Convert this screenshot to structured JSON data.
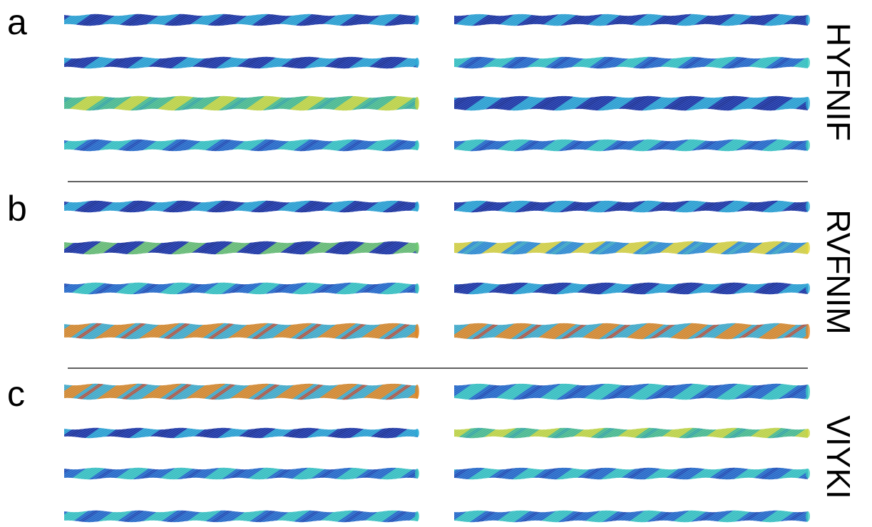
{
  "panels": [
    {
      "label": "a",
      "sequence": "HYFNIF"
    },
    {
      "label": "b",
      "sequence": "RVFNIM"
    },
    {
      "label": "c",
      "sequence": "VIYKI"
    }
  ]
}
